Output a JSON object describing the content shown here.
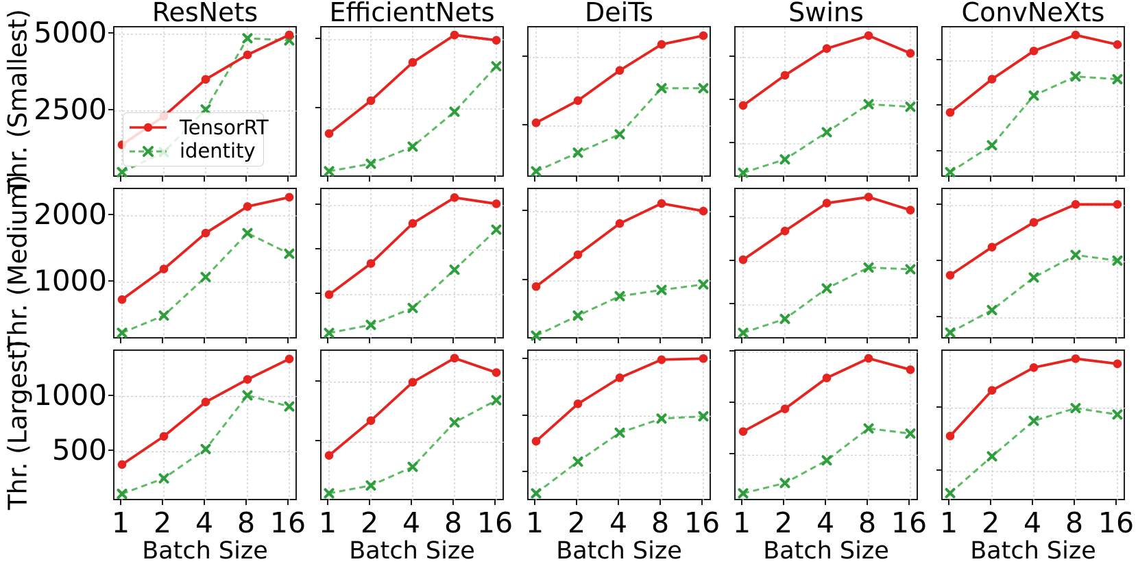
{
  "figure": {
    "col_titles": [
      "ResNets",
      "EfficientNets",
      "DeiTs",
      "Swins",
      "ConvNeXts"
    ],
    "row_labels": [
      "Thr. (Smallest)",
      "Thr. (Medium)",
      "Thr. (Largest)"
    ],
    "xlabel": "Batch Size",
    "x_ticks": [
      "1",
      "2",
      "4",
      "8",
      "16"
    ],
    "legend": {
      "entries": [
        {
          "label": "TensorRT",
          "marker": "circle-marker"
        },
        {
          "label": "identity",
          "marker": "x-marker"
        }
      ]
    },
    "colors": {
      "tensorrt": "#e52420",
      "identity_line": "#5dbb63",
      "identity_marker": "#2e9e3c",
      "grid": "#c9c9c9",
      "spine": "#1c1c1c"
    }
  },
  "chart_data": [
    {
      "type": "line",
      "family": "ResNets",
      "size": "Smallest",
      "row": 0,
      "col": 0,
      "x": [
        1,
        2,
        4,
        8,
        16
      ],
      "x_scale": "log2",
      "ylim": [
        313,
        5223
      ],
      "yticks": [
        2500,
        5000
      ],
      "show_ytick_labels": true,
      "series": [
        {
          "name": "TensorRT",
          "values": [
            1400,
            2330,
            3530,
            4330,
            4980
          ]
        },
        {
          "name": "identity",
          "values": [
            510,
            1160,
            2550,
            4870,
            4800
          ]
        }
      ]
    },
    {
      "type": "line",
      "family": "EfficientNets",
      "size": "Smallest",
      "row": 0,
      "col": 1,
      "x": [
        1,
        2,
        4,
        8,
        16
      ],
      "x_scale": "log2",
      "ylim": [
        0,
        5445
      ],
      "yticks": [
        2500,
        5000
      ],
      "show_ytick_labels": false,
      "series": [
        {
          "name": "TensorRT",
          "values": [
            1610,
            2800,
            4180,
            5170,
            4980
          ]
        },
        {
          "name": "identity",
          "values": [
            250,
            520,
            1140,
            2400,
            4040
          ]
        }
      ]
    },
    {
      "type": "line",
      "family": "DeiTs",
      "size": "Smallest",
      "row": 0,
      "col": 2,
      "x": [
        1,
        2,
        4,
        8,
        16
      ],
      "x_scale": "log2",
      "ylim": [
        600,
        6100
      ],
      "yticks": [
        2500,
        5000
      ],
      "show_ytick_labels": false,
      "series": [
        {
          "name": "TensorRT",
          "values": [
            2620,
            3430,
            4530,
            5480,
            5800
          ]
        },
        {
          "name": "identity",
          "values": [
            850,
            1530,
            2200,
            3880,
            3880
          ]
        }
      ]
    },
    {
      "type": "line",
      "family": "Swins",
      "size": "Smallest",
      "row": 0,
      "col": 3,
      "x": [
        1,
        2,
        4,
        8,
        16
      ],
      "x_scale": "log2",
      "ylim": [
        1205,
        4700
      ],
      "yticks": [
        2000,
        3000,
        4000
      ],
      "show_ytick_labels": false,
      "series": [
        {
          "name": "TensorRT",
          "values": [
            2890,
            3590,
            4210,
            4510,
            4100
          ]
        },
        {
          "name": "identity",
          "values": [
            1330,
            1640,
            2270,
            2920,
            2860
          ]
        }
      ]
    },
    {
      "type": "line",
      "family": "ConvNeXts",
      "size": "Smallest",
      "row": 0,
      "col": 4,
      "x": [
        1,
        2,
        4,
        8,
        16
      ],
      "x_scale": "log2",
      "ylim": [
        1428,
        4737
      ],
      "yticks": [
        2000,
        3000,
        4000
      ],
      "show_ytick_labels": false,
      "series": [
        {
          "name": "TensorRT",
          "values": [
            2870,
            3600,
            4220,
            4570,
            4360
          ]
        },
        {
          "name": "identity",
          "values": [
            1560,
            2150,
            3240,
            3660,
            3600
          ]
        }
      ]
    },
    {
      "type": "line",
      "family": "ResNets",
      "size": "Medium",
      "row": 1,
      "col": 0,
      "x": [
        1,
        2,
        4,
        8,
        16
      ],
      "x_scale": "log2",
      "ylim": [
        134,
        2402
      ],
      "yticks": [
        1000,
        2000
      ],
      "show_ytick_labels": true,
      "series": [
        {
          "name": "TensorRT",
          "values": [
            740,
            1200,
            1740,
            2140,
            2280
          ]
        },
        {
          "name": "identity",
          "values": [
            240,
            500,
            1080,
            1740,
            1430
          ]
        }
      ]
    },
    {
      "type": "line",
      "family": "EfficientNets",
      "size": "Medium",
      "row": 1,
      "col": 1,
      "x": [
        1,
        2,
        4,
        8,
        16
      ],
      "x_scale": "log2",
      "ylim": [
        492,
        2185
      ],
      "yticks": [
        1000,
        1500,
        2000
      ],
      "show_ytick_labels": false,
      "series": [
        {
          "name": "TensorRT",
          "values": [
            1000,
            1350,
            1800,
            2090,
            2020
          ]
        },
        {
          "name": "identity",
          "values": [
            570,
            660,
            850,
            1280,
            1730
          ]
        }
      ]
    },
    {
      "type": "line",
      "family": "DeiTs",
      "size": "Medium",
      "row": 1,
      "col": 2,
      "x": [
        1,
        2,
        4,
        8,
        16
      ],
      "x_scale": "log2",
      "ylim": [
        149,
        2327
      ],
      "yticks": [
        1000,
        2000
      ],
      "show_ytick_labels": false,
      "series": [
        {
          "name": "TensorRT",
          "values": [
            920,
            1380,
            1830,
            2120,
            2010
          ]
        },
        {
          "name": "identity",
          "values": [
            210,
            500,
            780,
            870,
            950
          ]
        }
      ]
    },
    {
      "type": "line",
      "family": "Swins",
      "size": "Medium",
      "row": 1,
      "col": 3,
      "x": [
        1,
        2,
        4,
        8,
        16
      ],
      "x_scale": "log2",
      "ylim": [
        599,
        2331
      ],
      "yticks": [
        1000,
        1500,
        2000
      ],
      "show_ytick_labels": false,
      "series": [
        {
          "name": "TensorRT",
          "values": [
            1520,
            1850,
            2170,
            2240,
            2090
          ]
        },
        {
          "name": "identity",
          "values": [
            680,
            840,
            1190,
            1430,
            1410
          ]
        }
      ]
    },
    {
      "type": "line",
      "family": "ConvNeXts",
      "size": "Medium",
      "row": 1,
      "col": 4,
      "x": [
        1,
        2,
        4,
        8,
        16
      ],
      "x_scale": "log2",
      "ylim": [
        805,
        2146
      ],
      "yticks": [
        1000,
        1500,
        2000
      ],
      "show_ytick_labels": false,
      "series": [
        {
          "name": "TensorRT",
          "values": [
            1380,
            1630,
            1850,
            2010,
            2010
          ]
        },
        {
          "name": "identity",
          "values": [
            870,
            1070,
            1360,
            1560,
            1510
          ]
        }
      ]
    },
    {
      "type": "line",
      "family": "ResNets",
      "size": "Largest",
      "row": 2,
      "col": 0,
      "x": [
        1,
        2,
        4,
        8,
        16
      ],
      "x_scale": "log2",
      "ylim": [
        50,
        1413
      ],
      "yticks": [
        500,
        1000
      ],
      "show_ytick_labels": true,
      "series": [
        {
          "name": "TensorRT",
          "values": [
            385,
            640,
            950,
            1155,
            1340
          ]
        },
        {
          "name": "identity",
          "values": [
            120,
            260,
            525,
            1010,
            910
          ]
        }
      ]
    },
    {
      "type": "line",
      "family": "EfficientNets",
      "size": "Largest",
      "row": 2,
      "col": 1,
      "x": [
        1,
        2,
        4,
        8,
        16
      ],
      "x_scale": "log2",
      "ylim": [
        6,
        1261
      ],
      "yticks": [
        500,
        1000
      ],
      "show_ytick_labels": false,
      "series": [
        {
          "name": "TensorRT",
          "values": [
            390,
            680,
            1000,
            1200,
            1080
          ]
        },
        {
          "name": "identity",
          "values": [
            75,
            140,
            295,
            665,
            850
          ]
        }
      ]
    },
    {
      "type": "line",
      "family": "DeiTs",
      "size": "Largest",
      "row": 2,
      "col": 2,
      "x": [
        1,
        2,
        4,
        8,
        16
      ],
      "x_scale": "log2",
      "ylim": [
        247,
        1578
      ],
      "yticks": [
        500,
        1000,
        1500
      ],
      "show_ytick_labels": false,
      "series": [
        {
          "name": "TensorRT",
          "values": [
            780,
            1110,
            1340,
            1500,
            1510
          ]
        },
        {
          "name": "identity",
          "values": [
            320,
            600,
            855,
            980,
            1000
          ]
        }
      ]
    },
    {
      "type": "line",
      "family": "Swins",
      "size": "Largest",
      "row": 2,
      "col": 3,
      "x": [
        1,
        2,
        4,
        8,
        16
      ],
      "x_scale": "log2",
      "ylim": [
        50,
        1513
      ],
      "yticks": [
        500,
        1000,
        1500
      ],
      "show_ytick_labels": false,
      "series": [
        {
          "name": "TensorRT",
          "values": [
            730,
            950,
            1250,
            1440,
            1330
          ]
        },
        {
          "name": "identity",
          "values": [
            130,
            230,
            450,
            760,
            710
          ]
        }
      ]
    },
    {
      "type": "line",
      "family": "ConvNeXts",
      "size": "Largest",
      "row": 2,
      "col": 4,
      "x": [
        1,
        2,
        4,
        8,
        16
      ],
      "x_scale": "log2",
      "ylim": [
        263,
        1452
      ],
      "yticks": [
        500,
        1000
      ],
      "show_ytick_labels": false,
      "series": [
        {
          "name": "TensorRT",
          "values": [
            780,
            1140,
            1320,
            1390,
            1350
          ]
        },
        {
          "name": "identity",
          "values": [
            330,
            620,
            900,
            1000,
            950
          ]
        }
      ]
    }
  ]
}
